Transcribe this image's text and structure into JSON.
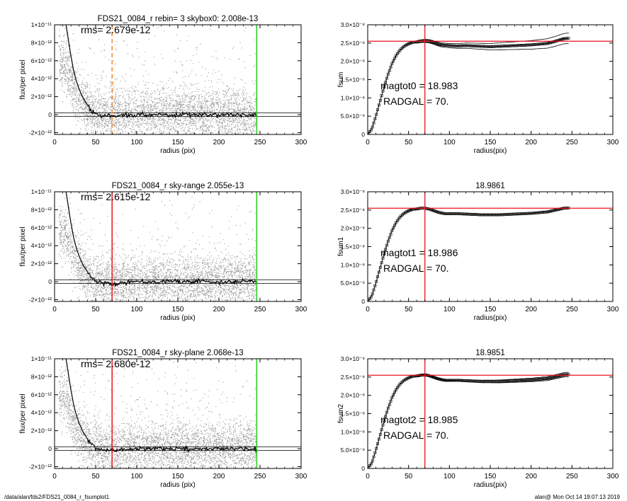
{
  "footer": {
    "path": "/data/alan/fds2/FDS21_0084_r_fsumplot1",
    "stamp": "alan@  Mon Oct 14 19:07:13 2019"
  },
  "colors": {
    "scatter": "#9a9a9a",
    "profile": "#000000",
    "radius_marker": "#e8131c",
    "radius_marker_dashed": "#f08a24",
    "outer_marker": "#22d022",
    "reference": "#e8131c"
  },
  "chart_data": [
    {
      "type": "scatter",
      "id": "left-1",
      "title": "FDS21_0084_r rebin= 3    skybox0:  2.008e-13",
      "annotation": "rms= 2.679e-12",
      "xlabel": "radius (pix)",
      "ylabel": "flux/per pixel",
      "xlim": [
        0,
        300
      ],
      "ylim": [
        -2.2e-12,
        1e-11
      ],
      "xticks": [
        "0",
        "50",
        "100",
        "150",
        "200",
        "250",
        "300"
      ],
      "yticks": [
        "-2×10⁻¹²",
        "0",
        "2×10⁻¹²",
        "4×10⁻¹²",
        "6×10⁻¹²",
        "8×10⁻¹²",
        "1×10⁻¹¹"
      ],
      "inner_radius": 70,
      "inner_radius_style": "dashed",
      "outer_radius": 246,
      "rms": 2.679e-12,
      "profile": {
        "x": [
          14,
          17,
          20,
          23,
          26,
          30,
          35,
          40,
          45,
          50,
          55,
          60,
          65,
          70,
          80,
          100,
          150,
          200,
          246
        ],
        "y": [
          1e-11,
          8.2e-12,
          6.5e-12,
          5e-12,
          3.9e-12,
          2.8e-12,
          1.8e-12,
          1.1e-12,
          6e-13,
          2e-13,
          1e-13,
          -1e-13,
          0,
          -1e-13,
          -1e-13,
          0,
          0,
          0,
          0
        ]
      }
    },
    {
      "type": "line",
      "id": "right-1",
      "title": "",
      "ylabel": "fsum",
      "xlabel": "radius(pix)",
      "xlim": [
        0,
        300
      ],
      "ylim": [
        0,
        3e-08
      ],
      "xticks": [
        "0",
        "50",
        "100",
        "150",
        "200",
        "250",
        "300"
      ],
      "yticks": [
        "0",
        "5.0×10⁻⁹",
        "1.0×10⁻⁸",
        "1.5×10⁻⁸",
        "2.0×10⁻⁸",
        "2.5×10⁻⁸",
        "3.0×10⁻⁸"
      ],
      "magtot_label": "magtot0 =  18.983",
      "radgal_label": "RADGAL =     70.",
      "vline_x": 70,
      "hline_y": 2.55e-08,
      "growth_curve": {
        "x": [
          0,
          5,
          10,
          15,
          20,
          25,
          30,
          35,
          40,
          45,
          50,
          55,
          60,
          65,
          70,
          75,
          80,
          85,
          90,
          95,
          100,
          110,
          120,
          130,
          140,
          150,
          160,
          170,
          180,
          190,
          200,
          210,
          220,
          230,
          240,
          246
        ],
        "y": [
          0,
          1.5e-09,
          5e-09,
          9e-09,
          1.3e-08,
          1.65e-08,
          1.95e-08,
          2.17e-08,
          2.32e-08,
          2.42e-08,
          2.48e-08,
          2.52e-08,
          2.53e-08,
          2.55e-08,
          2.56e-08,
          2.55e-08,
          2.52e-08,
          2.48e-08,
          2.45e-08,
          2.44e-08,
          2.43e-08,
          2.42e-08,
          2.43e-08,
          2.42e-08,
          2.41e-08,
          2.4e-08,
          2.41e-08,
          2.42e-08,
          2.43e-08,
          2.44e-08,
          2.45e-08,
          2.47e-08,
          2.49e-08,
          2.55e-08,
          2.62e-08,
          2.63e-08
        ]
      },
      "envelope_offset": 1.2e-09
    },
    {
      "type": "scatter",
      "id": "left-2",
      "title": "FDS21_0084_r sky-range  2.055e-13",
      "annotation": "rms= 2.615e-12",
      "xlabel": "radius (pix)",
      "ylabel": "flux/per pixel",
      "xlim": [
        0,
        300
      ],
      "ylim": [
        -2.2e-12,
        1e-11
      ],
      "xticks": [
        "0",
        "50",
        "100",
        "150",
        "200",
        "250",
        "300"
      ],
      "yticks": [
        "-2×10⁻¹²",
        "0",
        "2×10⁻¹²",
        "4×10⁻¹²",
        "6×10⁻¹²",
        "8×10⁻¹²",
        "1×10⁻¹¹"
      ],
      "inner_radius": 70,
      "inner_radius_style": "solid",
      "outer_radius": 246,
      "rms": 2.615e-12,
      "profile": {
        "x": [
          14,
          17,
          20,
          23,
          26,
          30,
          35,
          40,
          45,
          50,
          55,
          60,
          65,
          70,
          80,
          100,
          150,
          200,
          246
        ],
        "y": [
          1e-11,
          8.2e-12,
          6.5e-12,
          5e-12,
          3.9e-12,
          2.8e-12,
          1.8e-12,
          1.1e-12,
          6e-13,
          2e-13,
          1e-13,
          -1e-13,
          0,
          -2e-13,
          -1e-13,
          0,
          0,
          0,
          0
        ]
      }
    },
    {
      "type": "line",
      "id": "right-2",
      "title": "18.9861",
      "ylabel": "fsum1",
      "xlabel": "radius(pix)",
      "xlim": [
        0,
        300
      ],
      "ylim": [
        0,
        3e-08
      ],
      "xticks": [
        "0",
        "50",
        "100",
        "150",
        "200",
        "250",
        "300"
      ],
      "yticks": [
        "0",
        "5.0×10⁻⁹",
        "1.0×10⁻⁸",
        "1.5×10⁻⁸",
        "2.0×10⁻⁸",
        "2.5×10⁻⁸",
        "3.0×10⁻⁸"
      ],
      "magtot_label": "magtot1 =  18.986",
      "radgal_label": "RADGAL =     70.",
      "vline_x": 70,
      "hline_y": 2.55e-08,
      "growth_curve": {
        "x": [
          0,
          5,
          10,
          15,
          20,
          25,
          30,
          35,
          40,
          45,
          50,
          55,
          60,
          65,
          70,
          75,
          80,
          85,
          90,
          95,
          100,
          110,
          120,
          130,
          140,
          150,
          160,
          170,
          180,
          190,
          200,
          210,
          220,
          230,
          240,
          246
        ],
        "y": [
          0,
          1.5e-09,
          5e-09,
          9e-09,
          1.3e-08,
          1.65e-08,
          1.95e-08,
          2.17e-08,
          2.32e-08,
          2.42e-08,
          2.48e-08,
          2.52e-08,
          2.53e-08,
          2.55e-08,
          2.55e-08,
          2.53e-08,
          2.49e-08,
          2.45e-08,
          2.42e-08,
          2.4e-08,
          2.4e-08,
          2.4e-08,
          2.39e-08,
          2.38e-08,
          2.37e-08,
          2.37e-08,
          2.37e-08,
          2.38e-08,
          2.39e-08,
          2.4e-08,
          2.41e-08,
          2.43e-08,
          2.45e-08,
          2.5e-08,
          2.55e-08,
          2.56e-08
        ]
      },
      "envelope_offset": 0
    },
    {
      "type": "scatter",
      "id": "left-3",
      "title": "FDS21_0084_r sky-plane  2.068e-13",
      "annotation": "rms= 2.680e-12",
      "xlabel": "radius (pix)",
      "ylabel": "flux/per pixel",
      "xlim": [
        0,
        300
      ],
      "ylim": [
        -2.2e-12,
        1e-11
      ],
      "xticks": [
        "0",
        "50",
        "100",
        "150",
        "200",
        "250",
        "300"
      ],
      "yticks": [
        "-2×10⁻¹²",
        "0",
        "2×10⁻¹²",
        "4×10⁻¹²",
        "6×10⁻¹²",
        "8×10⁻¹²",
        "1×10⁻¹¹"
      ],
      "inner_radius": 70,
      "inner_radius_style": "solid",
      "outer_radius": 246,
      "rms": 2.68e-12,
      "profile": {
        "x": [
          14,
          17,
          20,
          23,
          26,
          30,
          35,
          40,
          45,
          50,
          55,
          60,
          65,
          70,
          80,
          100,
          150,
          200,
          246
        ],
        "y": [
          1e-11,
          8.2e-12,
          6.5e-12,
          5e-12,
          3.9e-12,
          2.8e-12,
          1.8e-12,
          1.1e-12,
          6e-13,
          2e-13,
          1e-13,
          -1e-13,
          0,
          -1e-13,
          -1e-13,
          0,
          0,
          0,
          0
        ]
      }
    },
    {
      "type": "line",
      "id": "right-3",
      "title": "18.9851",
      "ylabel": "fsum2",
      "xlabel": "radius(pix)",
      "xlim": [
        0,
        300
      ],
      "ylim": [
        0,
        3e-08
      ],
      "xticks": [
        "0",
        "50",
        "100",
        "150",
        "200",
        "250",
        "300"
      ],
      "yticks": [
        "0",
        "5.0×10⁻⁹",
        "1.0×10⁻⁸",
        "1.5×10⁻⁸",
        "2.0×10⁻⁸",
        "2.5×10⁻⁸",
        "3.0×10⁻⁸"
      ],
      "magtot_label": "magtot2 =  18.985",
      "radgal_label": "RADGAL =     70.",
      "vline_x": 70,
      "hline_y": 2.55e-08,
      "growth_curve": {
        "x": [
          0,
          5,
          10,
          15,
          20,
          25,
          30,
          35,
          40,
          45,
          50,
          55,
          60,
          65,
          70,
          75,
          80,
          85,
          90,
          95,
          100,
          110,
          120,
          130,
          140,
          150,
          160,
          170,
          180,
          190,
          200,
          210,
          220,
          230,
          240,
          246
        ],
        "y": [
          0,
          1.5e-09,
          5e-09,
          9e-09,
          1.3e-08,
          1.65e-08,
          1.95e-08,
          2.17e-08,
          2.32e-08,
          2.42e-08,
          2.48e-08,
          2.52e-08,
          2.53e-08,
          2.55e-08,
          2.56e-08,
          2.54e-08,
          2.5e-08,
          2.46e-08,
          2.43e-08,
          2.41e-08,
          2.41e-08,
          2.41e-08,
          2.4e-08,
          2.39e-08,
          2.38e-08,
          2.38e-08,
          2.38e-08,
          2.39e-08,
          2.4e-08,
          2.41e-08,
          2.42e-08,
          2.44e-08,
          2.46e-08,
          2.51e-08,
          2.56e-08,
          2.57e-08
        ]
      },
      "envelope_offset": 5e-10
    }
  ]
}
